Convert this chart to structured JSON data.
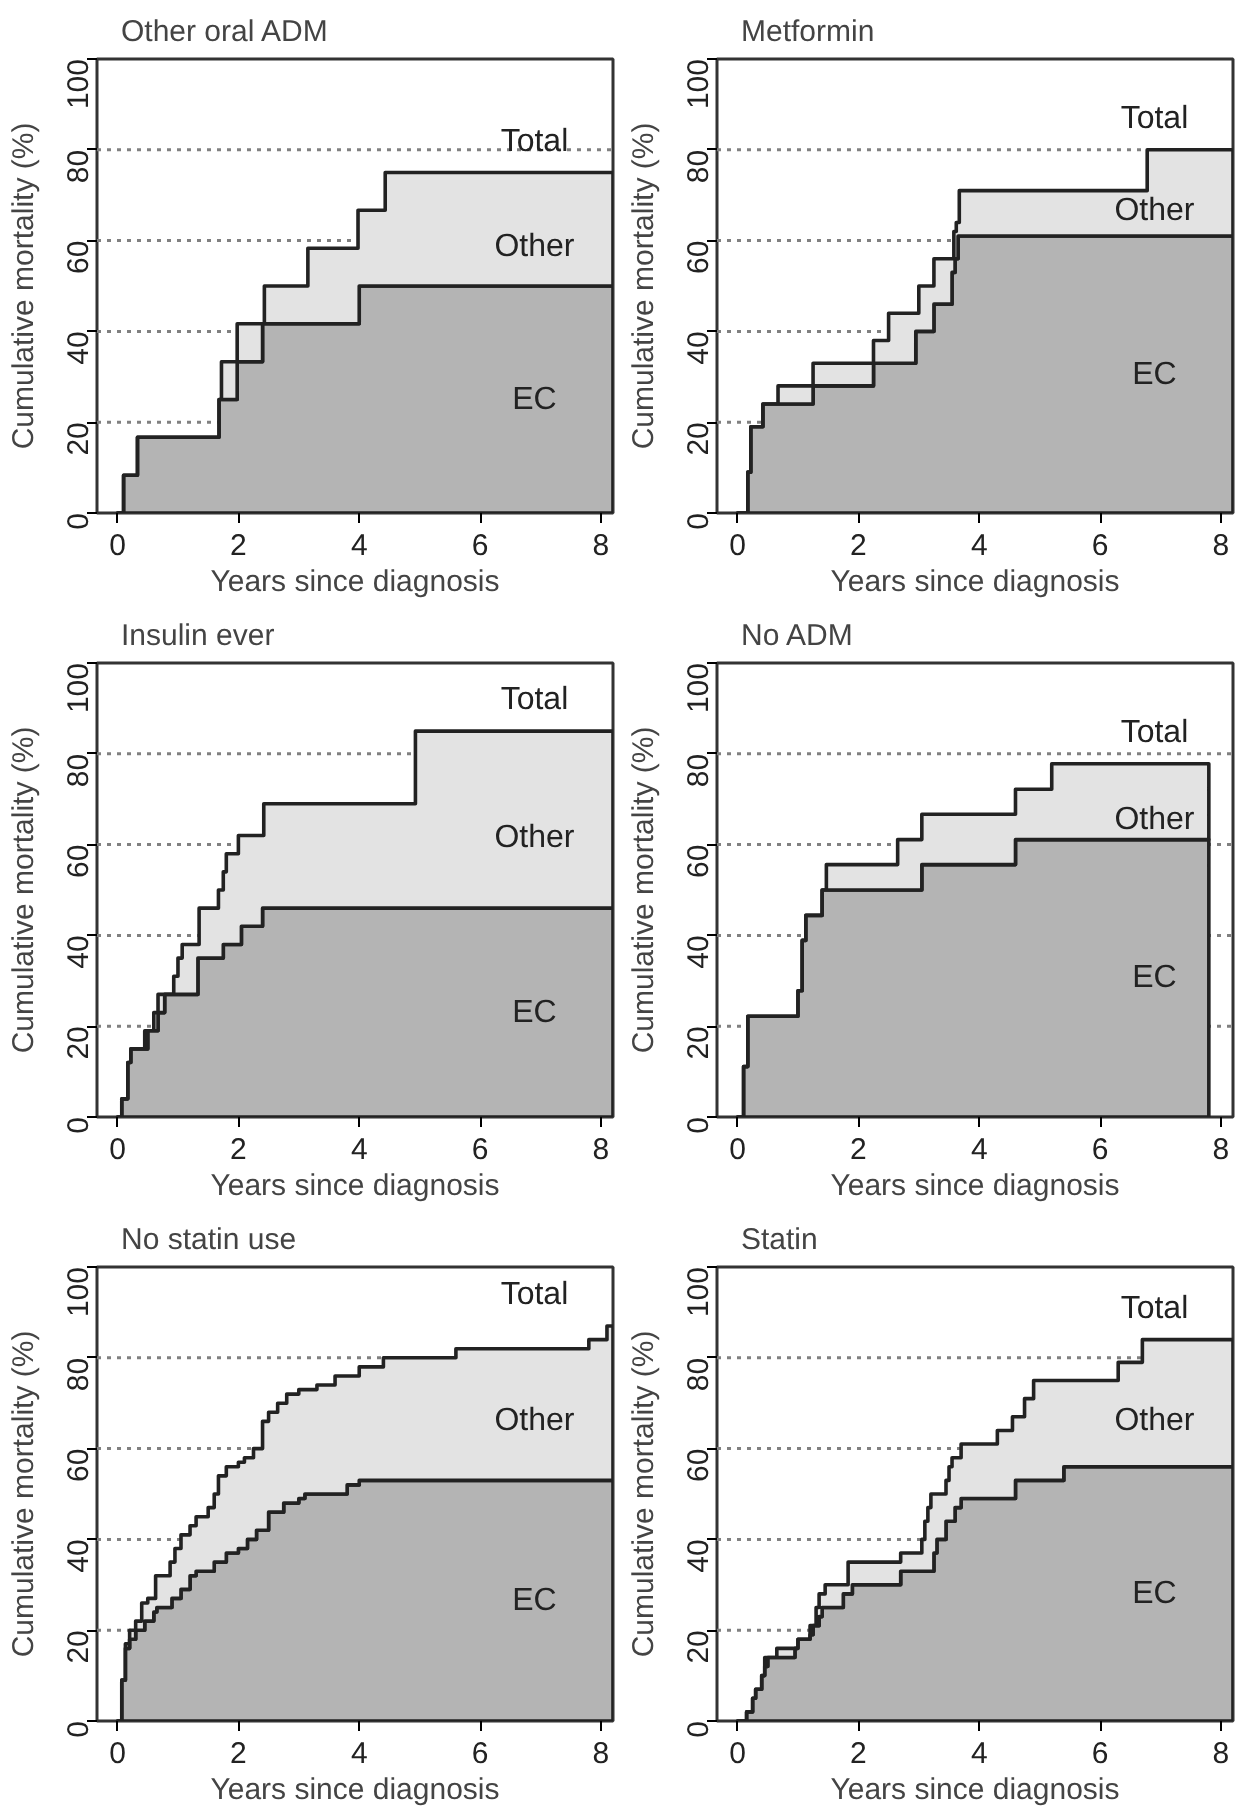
{
  "chart_data": [
    {
      "type": "area",
      "title": "Other oral ADM",
      "xlabel": "Years since diagnosis",
      "ylabel": "Cumulative mortality (%)",
      "xlim": [
        -0.34,
        8.2
      ],
      "ylim": [
        0,
        100
      ],
      "xticks": [
        0,
        2,
        4,
        6,
        8
      ],
      "yticks": [
        0,
        20,
        40,
        60,
        80,
        100
      ],
      "grid": false,
      "series": [
        {
          "name": "Total",
          "color": "#e3e3e3",
          "x": [
            0,
            0.1,
            0.1,
            0.33,
            0.33,
            1.68,
            1.68,
            1.72,
            1.72,
            1.98,
            1.98,
            2.43,
            2.43,
            3.15,
            3.15,
            3.98,
            3.98,
            4.43,
            4.43,
            8.2
          ],
          "values": [
            0,
            0,
            8.3,
            8.3,
            16.7,
            16.7,
            25,
            25,
            33.3,
            33.3,
            41.7,
            41.7,
            50,
            50,
            58.3,
            58.3,
            66.7,
            66.7,
            75,
            75
          ]
        },
        {
          "name": "EC",
          "color": "#b4b4b4",
          "x": [
            0,
            0.1,
            0.1,
            0.33,
            0.33,
            1.68,
            1.68,
            1.98,
            1.98,
            2.4,
            2.4,
            4.0,
            4.0,
            8.2
          ],
          "values": [
            0,
            0,
            8.3,
            8.3,
            16.7,
            16.7,
            25,
            25,
            33.3,
            33.3,
            41.7,
            41.7,
            50,
            50
          ]
        }
      ],
      "ref_lines": [
        {
          "axis": "y",
          "value": 20,
          "color": "#808080",
          "line_style": "dotted"
        },
        {
          "axis": "y",
          "value": 40,
          "color": "#808080",
          "line_style": "dotted"
        },
        {
          "axis": "y",
          "value": 60,
          "color": "#808080",
          "line_style": "dotted"
        },
        {
          "axis": "y",
          "value": 80,
          "color": "#808080",
          "line_style": "dotted"
        }
      ],
      "annotations": [
        "Other"
      ]
    },
    {
      "type": "area",
      "title": "Metformin",
      "xlabel": "Years since diagnosis",
      "ylabel": "Cumulative mortality (%)",
      "xlim": [
        -0.34,
        8.2
      ],
      "ylim": [
        0,
        100
      ],
      "xticks": [
        0,
        2,
        4,
        6,
        8
      ],
      "yticks": [
        0,
        20,
        40,
        60,
        80,
        100
      ],
      "grid": false,
      "series": [
        {
          "name": "Total",
          "color": "#e3e3e3",
          "x": [
            0,
            0.17,
            0.17,
            0.22,
            0.22,
            0.42,
            0.42,
            0.67,
            0.67,
            1.25,
            1.25,
            2.25,
            2.25,
            2.5,
            2.5,
            3.0,
            3.0,
            3.25,
            3.25,
            3.58,
            3.58,
            3.62,
            3.62,
            3.67,
            3.67,
            6.78,
            6.78,
            8.2
          ],
          "values": [
            0,
            0,
            9,
            9,
            19,
            19,
            24,
            24,
            28,
            28,
            33,
            33,
            38,
            38,
            44,
            44,
            50,
            50,
            56,
            56,
            62,
            62,
            64,
            64,
            71,
            71,
            80,
            80
          ]
        },
        {
          "name": "EC",
          "color": "#b4b4b4",
          "x": [
            0,
            0.17,
            0.17,
            0.22,
            0.22,
            0.42,
            0.42,
            1.25,
            1.25,
            2.25,
            2.25,
            2.95,
            2.95,
            3.25,
            3.25,
            3.55,
            3.55,
            3.6,
            3.6,
            3.65,
            3.65,
            8.2
          ],
          "values": [
            0,
            0,
            9,
            9,
            19,
            19,
            24,
            24,
            28,
            28,
            33,
            33,
            40,
            40,
            46,
            46,
            53,
            53,
            56,
            56,
            61,
            61
          ]
        }
      ],
      "ref_lines": [
        {
          "axis": "y",
          "value": 20,
          "color": "#808080",
          "line_style": "dotted"
        },
        {
          "axis": "y",
          "value": 40,
          "color": "#808080",
          "line_style": "dotted"
        },
        {
          "axis": "y",
          "value": 60,
          "color": "#808080",
          "line_style": "dotted"
        },
        {
          "axis": "y",
          "value": 80,
          "color": "#808080",
          "line_style": "dotted"
        }
      ],
      "annotations": [
        "Other"
      ]
    },
    {
      "type": "area",
      "title": "Insulin ever",
      "xlabel": "Years since diagnosis",
      "ylabel": "Cumulative mortality (%)",
      "xlim": [
        -0.34,
        8.2
      ],
      "ylim": [
        0,
        100
      ],
      "xticks": [
        0,
        2,
        4,
        6,
        8
      ],
      "yticks": [
        0,
        20,
        40,
        60,
        80,
        100
      ],
      "grid": false,
      "series": [
        {
          "name": "Total",
          "color": "#e3e3e3",
          "x": [
            0,
            0.07,
            0.07,
            0.17,
            0.17,
            0.22,
            0.22,
            0.45,
            0.45,
            0.6,
            0.6,
            0.67,
            0.67,
            0.78,
            0.93,
            0.93,
            1.0,
            1.0,
            1.07,
            1.07,
            1.35,
            1.35,
            1.67,
            1.67,
            1.75,
            1.75,
            1.8,
            1.8,
            2.0,
            2.0,
            2.42,
            2.42,
            4.93,
            4.93,
            8.2
          ],
          "values": [
            0,
            0,
            4,
            4,
            12,
            12,
            15,
            15,
            19,
            19,
            23,
            23,
            27,
            27,
            27,
            31,
            31,
            35,
            35,
            38,
            38,
            46,
            46,
            50,
            50,
            54,
            54,
            58,
            58,
            62,
            62,
            69,
            69,
            85,
            85
          ]
        },
        {
          "name": "EC",
          "color": "#b4b4b4",
          "x": [
            0,
            0.07,
            0.07,
            0.17,
            0.17,
            0.22,
            0.22,
            0.5,
            0.5,
            0.67,
            0.67,
            0.78,
            0.78,
            1.33,
            1.33,
            1.75,
            1.75,
            2.05,
            2.05,
            2.4,
            2.4,
            8.2
          ],
          "values": [
            0,
            0,
            4,
            4,
            12,
            12,
            15,
            15,
            19,
            19,
            23,
            23,
            27,
            27,
            35,
            35,
            38,
            38,
            42,
            42,
            46,
            46
          ]
        }
      ],
      "ref_lines": [
        {
          "axis": "y",
          "value": 20,
          "color": "#808080",
          "line_style": "dotted"
        },
        {
          "axis": "y",
          "value": 40,
          "color": "#808080",
          "line_style": "dotted"
        },
        {
          "axis": "y",
          "value": 60,
          "color": "#808080",
          "line_style": "dotted"
        },
        {
          "axis": "y",
          "value": 80,
          "color": "#808080",
          "line_style": "dotted"
        }
      ],
      "annotations": [
        "Other"
      ]
    },
    {
      "type": "area",
      "title": "No ADM",
      "xlabel": "Years since diagnosis",
      "ylabel": "Cumulative mortality (%)",
      "xlim": [
        -0.34,
        8.2
      ],
      "ylim": [
        0,
        100
      ],
      "xticks": [
        0,
        2,
        4,
        6,
        8
      ],
      "yticks": [
        0,
        20,
        40,
        60,
        80,
        100
      ],
      "grid": false,
      "series": [
        {
          "name": "Total",
          "color": "#e3e3e3",
          "x": [
            0,
            0.1,
            0.1,
            0.17,
            0.17,
            1.0,
            1.0,
            1.07,
            1.07,
            1.13,
            1.13,
            1.4,
            1.4,
            1.47,
            1.47,
            2.65,
            2.65,
            3.05,
            3.05,
            4.6,
            4.6,
            5.2,
            5.2,
            7.8
          ],
          "values": [
            0,
            0,
            11.1,
            11.1,
            22.2,
            22.2,
            27.8,
            27.8,
            38.9,
            38.9,
            44.4,
            44.4,
            50,
            50,
            55.6,
            55.6,
            61.1,
            61.1,
            66.7,
            66.7,
            72.2,
            72.2,
            77.8,
            77.8
          ]
        },
        {
          "name": "EC",
          "color": "#b4b4b4",
          "x": [
            0,
            0.1,
            0.1,
            0.17,
            0.17,
            1.0,
            1.0,
            1.07,
            1.07,
            1.13,
            1.13,
            1.4,
            1.4,
            3.05,
            3.05,
            4.6,
            4.6,
            7.8
          ],
          "values": [
            0,
            0,
            11.1,
            11.1,
            22.2,
            22.2,
            27.8,
            27.8,
            38.9,
            38.9,
            44.4,
            44.4,
            50,
            50,
            55.6,
            55.6,
            61.1,
            61.1
          ]
        }
      ],
      "ref_lines": [
        {
          "axis": "y",
          "value": 20,
          "color": "#808080",
          "line_style": "dotted"
        },
        {
          "axis": "y",
          "value": 40,
          "color": "#808080",
          "line_style": "dotted"
        },
        {
          "axis": "y",
          "value": 60,
          "color": "#808080",
          "line_style": "dotted"
        },
        {
          "axis": "y",
          "value": 80,
          "color": "#808080",
          "line_style": "dotted"
        }
      ],
      "annotations": [
        "Other"
      ]
    },
    {
      "type": "area",
      "title": "No statin use",
      "xlabel": "Years since diagnosis",
      "ylabel": "Cumulative mortality (%)",
      "xlim": [
        -0.34,
        8.2
      ],
      "ylim": [
        0,
        100
      ],
      "xticks": [
        0,
        2,
        4,
        6,
        8
      ],
      "yticks": [
        0,
        20,
        40,
        60,
        80,
        100
      ],
      "grid": false,
      "series": [
        {
          "name": "Total",
          "color": "#e3e3e3",
          "x": [
            0,
            0.07,
            0.07,
            0.13,
            0.13,
            0.2,
            0.2,
            0.3,
            0.3,
            0.4,
            0.4,
            0.5,
            0.5,
            0.63,
            0.63,
            0.87,
            0.87,
            0.95,
            0.95,
            1.05,
            1.05,
            1.2,
            1.2,
            1.3,
            1.3,
            1.5,
            1.5,
            1.6,
            1.6,
            1.67,
            1.67,
            1.8,
            1.8,
            2.0,
            2.0,
            2.1,
            2.1,
            2.25,
            2.25,
            2.4,
            2.4,
            2.5,
            2.5,
            2.65,
            2.65,
            2.8,
            2.8,
            3.0,
            3.0,
            3.1,
            3.3,
            3.3,
            3.6,
            3.6,
            3.8,
            4.0,
            4.0,
            4.4,
            4.4,
            5.6,
            5.6,
            7.8,
            7.8,
            8.1,
            8.1,
            8.2
          ],
          "values": [
            0,
            0,
            9,
            9,
            17,
            17,
            20,
            20,
            22,
            22,
            26,
            26,
            27,
            27,
            32,
            32,
            35,
            35,
            38,
            38,
            41,
            41,
            43,
            43,
            45,
            45,
            47,
            47,
            50,
            50,
            54,
            54,
            56,
            56,
            57,
            57,
            58,
            58,
            60,
            60,
            66,
            66,
            68,
            68,
            70,
            70,
            72,
            72,
            73,
            73,
            73,
            74,
            74,
            76,
            76,
            76,
            78,
            78,
            80,
            80,
            82,
            82,
            84,
            84,
            87,
            87
          ]
        },
        {
          "name": "EC",
          "color": "#b4b4b4",
          "x": [
            0,
            0.07,
            0.07,
            0.13,
            0.13,
            0.2,
            0.2,
            0.3,
            0.3,
            0.45,
            0.45,
            0.6,
            0.6,
            0.65,
            0.65,
            0.9,
            0.9,
            1.05,
            1.05,
            1.2,
            1.2,
            1.3,
            1.3,
            1.6,
            1.6,
            1.8,
            1.8,
            2.0,
            2.0,
            2.15,
            2.15,
            2.3,
            2.3,
            2.5,
            2.5,
            2.75,
            2.75,
            3.0,
            3.0,
            3.1,
            3.1,
            3.8,
            3.8,
            4.0,
            4.0,
            8.2
          ],
          "values": [
            0,
            0,
            9,
            9,
            16,
            16,
            18,
            18,
            20,
            20,
            22,
            22,
            24,
            24,
            25,
            25,
            27,
            27,
            29,
            29,
            32,
            32,
            33,
            33,
            35,
            35,
            37,
            37,
            38,
            38,
            40,
            40,
            42,
            42,
            46,
            46,
            48,
            48,
            49,
            49,
            50,
            50,
            52,
            52,
            53,
            53
          ]
        }
      ],
      "ref_lines": [
        {
          "axis": "y",
          "value": 20,
          "color": "#808080",
          "line_style": "dotted"
        },
        {
          "axis": "y",
          "value": 40,
          "color": "#808080",
          "line_style": "dotted"
        },
        {
          "axis": "y",
          "value": 60,
          "color": "#808080",
          "line_style": "dotted"
        },
        {
          "axis": "y",
          "value": 80,
          "color": "#808080",
          "line_style": "dotted"
        }
      ],
      "annotations": [
        "Other"
      ]
    },
    {
      "type": "area",
      "title": "Statin",
      "xlabel": "Years since diagnosis",
      "ylabel": "Cumulative mortality (%)",
      "xlim": [
        -0.34,
        8.2
      ],
      "ylim": [
        0,
        100
      ],
      "xticks": [
        0,
        2,
        4,
        6,
        8
      ],
      "yticks": [
        0,
        20,
        40,
        60,
        80,
        100
      ],
      "grid": false,
      "series": [
        {
          "name": "Total",
          "color": "#e3e3e3",
          "x": [
            0,
            0.15,
            0.15,
            0.25,
            0.25,
            0.3,
            0.3,
            0.4,
            0.4,
            0.45,
            0.45,
            0.65,
            0.65,
            1.0,
            1.0,
            1.2,
            1.2,
            1.3,
            1.3,
            1.35,
            1.35,
            1.45,
            1.45,
            1.83,
            1.83,
            1.9,
            2.7,
            2.7,
            3.05,
            3.05,
            3.1,
            3.1,
            3.15,
            3.15,
            3.2,
            3.2,
            3.3,
            3.45,
            3.45,
            3.5,
            3.5,
            3.55,
            3.55,
            3.7,
            3.7,
            4.3,
            4.3,
            4.55,
            4.55,
            4.75,
            4.75,
            4.9,
            4.9,
            5.4,
            6.3,
            6.3,
            6.7,
            6.7,
            8.2
          ],
          "values": [
            0,
            0,
            2,
            2,
            5,
            5,
            7,
            7,
            10,
            10,
            14,
            14,
            16,
            16,
            18,
            18,
            21,
            21,
            25,
            25,
            28,
            28,
            30,
            30,
            35,
            35,
            35,
            37,
            37,
            40,
            40,
            44,
            44,
            47,
            47,
            50,
            50,
            50,
            53,
            53,
            56,
            56,
            58,
            58,
            61,
            61,
            64,
            64,
            67,
            67,
            71,
            71,
            75,
            75,
            75,
            79,
            79,
            84,
            84
          ]
        },
        {
          "name": "EC",
          "color": "#b4b4b4",
          "x": [
            0,
            0.15,
            0.15,
            0.25,
            0.25,
            0.3,
            0.3,
            0.4,
            0.4,
            0.45,
            0.45,
            0.5,
            0.5,
            0.95,
            0.95,
            1.0,
            1.0,
            1.2,
            1.2,
            1.25,
            1.25,
            1.35,
            1.35,
            1.4,
            1.4,
            1.75,
            1.75,
            1.9,
            1.9,
            2.7,
            2.7,
            3.25,
            3.25,
            3.3,
            3.3,
            3.45,
            3.45,
            3.6,
            3.6,
            3.7,
            3.7,
            4.6,
            4.6,
            5.4,
            5.4,
            8.2
          ],
          "values": [
            0,
            0,
            2,
            2,
            5,
            5,
            7,
            7,
            10,
            10,
            12,
            12,
            14,
            14,
            16,
            16,
            18,
            18,
            19,
            19,
            21,
            21,
            23,
            23,
            25,
            25,
            28,
            28,
            30,
            30,
            33,
            33,
            37,
            37,
            40,
            40,
            44,
            44,
            47,
            47,
            49,
            49,
            53,
            53,
            56,
            56
          ]
        }
      ],
      "ref_lines": [
        {
          "axis": "y",
          "value": 20,
          "color": "#808080",
          "line_style": "dotted"
        },
        {
          "axis": "y",
          "value": 40,
          "color": "#808080",
          "line_style": "dotted"
        },
        {
          "axis": "y",
          "value": 60,
          "color": "#808080",
          "line_style": "dotted"
        },
        {
          "axis": "y",
          "value": 80,
          "color": "#808080",
          "line_style": "dotted"
        }
      ],
      "annotations": [
        "Other"
      ]
    }
  ]
}
